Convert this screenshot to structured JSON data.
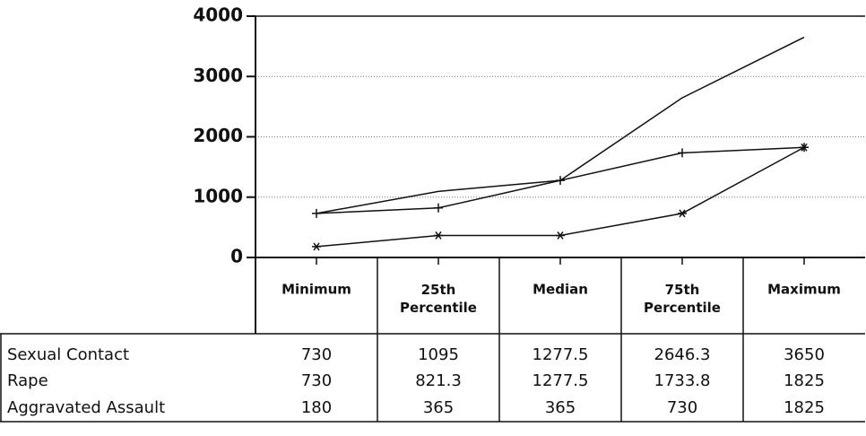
{
  "chart_data": {
    "type": "line",
    "categories": [
      "Minimum",
      "25th Percentile",
      "Median",
      "75th Percentile",
      "Maximum"
    ],
    "series": [
      {
        "name": "Sexual Contact",
        "color": "#111111",
        "marker": "none",
        "values": [
          730,
          1095,
          1277.5,
          2646.3,
          3650
        ]
      },
      {
        "name": "Rape",
        "color": "#111111",
        "marker": "plus",
        "values": [
          730,
          821.3,
          1277.5,
          1733.8,
          1825
        ]
      },
      {
        "name": "Aggravated Assault",
        "color": "#111111",
        "marker": "star",
        "values": [
          180,
          365,
          365,
          730,
          1825
        ]
      }
    ],
    "ylim": [
      0,
      4000
    ],
    "yticks": [
      0,
      1000,
      2000,
      3000,
      4000
    ],
    "grid": true
  }
}
